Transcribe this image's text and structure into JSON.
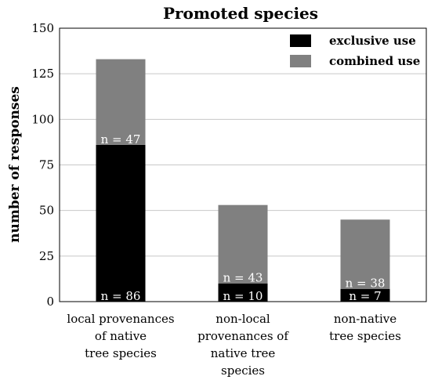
{
  "chart_data": {
    "type": "bar",
    "stacked": true,
    "title": "Promoted species",
    "ylabel": "number of responses",
    "xlabel": "",
    "ylim": [
      0,
      150
    ],
    "yticks": [
      0,
      25,
      50,
      75,
      100,
      125,
      150
    ],
    "grid": true,
    "legend_position": "top-right",
    "categories": [
      [
        "local provenances",
        "of native",
        "tree species"
      ],
      [
        "non-local",
        "provenances of",
        "native tree",
        "species"
      ],
      [
        "non-native",
        "tree species"
      ]
    ],
    "series": [
      {
        "name": "exclusive use",
        "color": "#000000",
        "values": [
          86,
          10,
          7
        ],
        "labels": [
          "n = 86",
          "n = 10",
          "n = 7"
        ]
      },
      {
        "name": "combined use",
        "color": "#808080",
        "values": [
          47,
          43,
          38
        ],
        "labels": [
          "n = 47",
          "n = 43",
          "n = 38"
        ]
      }
    ]
  }
}
